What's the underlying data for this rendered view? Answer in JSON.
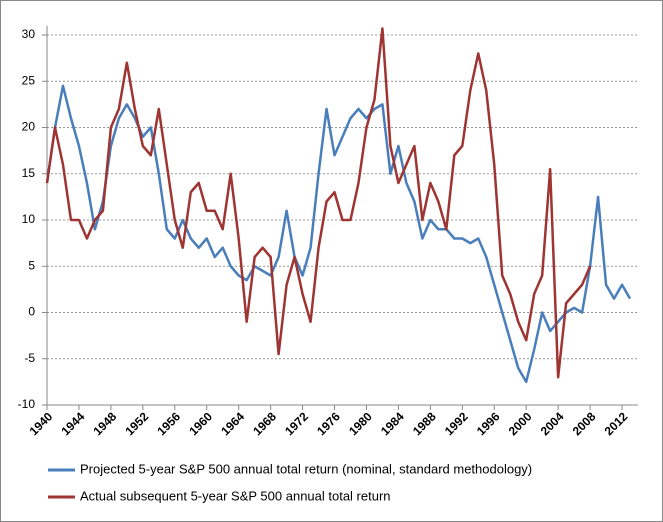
{
  "chart_data": {
    "type": "line",
    "x": [
      1940,
      1941,
      1942,
      1943,
      1944,
      1945,
      1946,
      1947,
      1948,
      1949,
      1950,
      1951,
      1952,
      1953,
      1954,
      1955,
      1956,
      1957,
      1958,
      1959,
      1960,
      1961,
      1962,
      1963,
      1964,
      1965,
      1966,
      1967,
      1968,
      1969,
      1970,
      1971,
      1972,
      1973,
      1974,
      1975,
      1976,
      1977,
      1978,
      1979,
      1980,
      1981,
      1982,
      1983,
      1984,
      1985,
      1986,
      1987,
      1988,
      1989,
      1990,
      1991,
      1992,
      1993,
      1994,
      1995,
      1996,
      1997,
      1998,
      1999,
      2000,
      2001,
      2002,
      2003,
      2004,
      2005,
      2006,
      2007,
      2008,
      2009,
      2010,
      2011,
      2012,
      2013
    ],
    "series": [
      {
        "name": "Projected 5-year S&P 500 annual total return (nominal, standard methodology)",
        "color": "#4a7ebb",
        "values": [
          14,
          20,
          24.5,
          21,
          18,
          14,
          9,
          12,
          18,
          21,
          22.5,
          21,
          19,
          20,
          15,
          9,
          8,
          10,
          8,
          7,
          8,
          6,
          7,
          5,
          4,
          3.5,
          5,
          4.5,
          4,
          6,
          11,
          6,
          4,
          7,
          15,
          22,
          17,
          19,
          21,
          22,
          21,
          22,
          22.5,
          15,
          18,
          14,
          12,
          8,
          10,
          9,
          9,
          8,
          8,
          7.5,
          8,
          6,
          3,
          0,
          -3,
          -6,
          -7.5,
          -4,
          0,
          -2,
          -1,
          0,
          0.5,
          0,
          5,
          12.5,
          3,
          1.5,
          3,
          1.5
        ]
      },
      {
        "name": "Actual subsequent 5-year S&P 500 annual total return",
        "color": "#9e3532",
        "values": [
          14,
          20,
          16,
          10,
          10,
          8,
          10,
          11,
          20,
          22,
          27,
          22,
          18,
          17,
          22,
          16,
          10,
          7,
          13,
          14,
          11,
          11,
          9,
          15,
          8,
          -1,
          6,
          7,
          6,
          -4.5,
          3,
          6,
          2,
          -1,
          7,
          12,
          13,
          10,
          10,
          14,
          20,
          23,
          30.7,
          18,
          14,
          16,
          18,
          10,
          14,
          12,
          9,
          17,
          18,
          24,
          28,
          24,
          16,
          4,
          2,
          -1,
          -3,
          2,
          4,
          15.5,
          -7,
          1,
          2,
          3,
          5,
          null,
          null,
          null,
          null,
          null
        ]
      }
    ],
    "xlim": [
      1940,
      2014
    ],
    "xticks": [
      1940,
      1944,
      1948,
      1952,
      1956,
      1960,
      1964,
      1968,
      1972,
      1976,
      1980,
      1984,
      1988,
      1992,
      1996,
      2000,
      2004,
      2008,
      2012
    ],
    "ylim": [
      -10,
      31
    ],
    "yticks": [
      -10,
      -5,
      0,
      5,
      10,
      15,
      20,
      25,
      30
    ],
    "grid": true,
    "legend": "bottom"
  }
}
